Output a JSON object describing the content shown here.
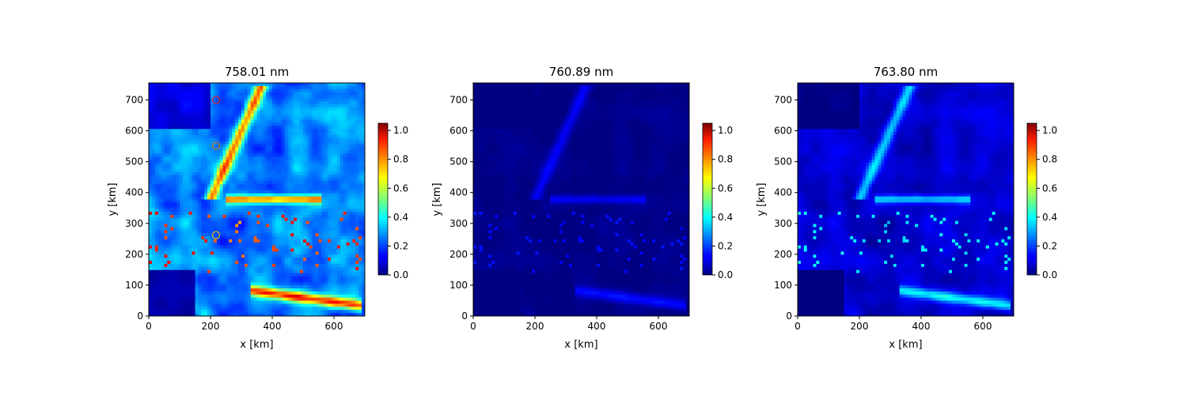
{
  "chart_data": [
    {
      "type": "heatmap",
      "title": "758.01 nm",
      "xlabel": "x [km]",
      "ylabel": "y [km]",
      "xlim": [
        0,
        700
      ],
      "ylim": [
        0,
        755
      ],
      "xticks": [
        "0",
        "200",
        "400",
        "600"
      ],
      "yticks": [
        "0",
        "100",
        "200",
        "300",
        "400",
        "500",
        "600",
        "700"
      ],
      "colorbar": {
        "range": [
          0,
          1.05
        ],
        "ticks": [
          "0.0",
          "0.2",
          "0.4",
          "0.6",
          "0.8",
          "1.0"
        ],
        "colormap": "jet"
      },
      "intensity": 1.0,
      "markers": [
        {
          "x": 218,
          "y": 700,
          "color": "#d62728"
        },
        {
          "x": 218,
          "y": 552,
          "color": "#e37a0a"
        },
        {
          "x": 218,
          "y": 262,
          "color": "#e3b50a"
        }
      ]
    },
    {
      "type": "heatmap",
      "title": "760.89 nm",
      "xlabel": "x [km]",
      "ylabel": "y [km]",
      "xlim": [
        0,
        700
      ],
      "ylim": [
        0,
        755
      ],
      "xticks": [
        "0",
        "200",
        "400",
        "600"
      ],
      "yticks": [
        "0",
        "100",
        "200",
        "300",
        "400",
        "500",
        "600",
        "700"
      ],
      "colorbar": {
        "range": [
          0,
          1.05
        ],
        "ticks": [
          "0.0",
          "0.2",
          "0.4",
          "0.6",
          "0.8",
          "1.0"
        ],
        "colormap": "jet"
      },
      "intensity": 0.22,
      "markers": []
    },
    {
      "type": "heatmap",
      "title": "763.80 nm",
      "xlabel": "x [km]",
      "ylabel": "y [km]",
      "xlim": [
        0,
        700
      ],
      "ylim": [
        0,
        755
      ],
      "xticks": [
        "0",
        "200",
        "400",
        "600"
      ],
      "yticks": [
        "0",
        "100",
        "200",
        "300",
        "400",
        "500",
        "600",
        "700"
      ],
      "colorbar": {
        "range": [
          0,
          1.05
        ],
        "ticks": [
          "0.0",
          "0.2",
          "0.4",
          "0.6",
          "0.8",
          "1.0"
        ],
        "colormap": "jet"
      },
      "intensity": 0.5,
      "markers": []
    }
  ]
}
